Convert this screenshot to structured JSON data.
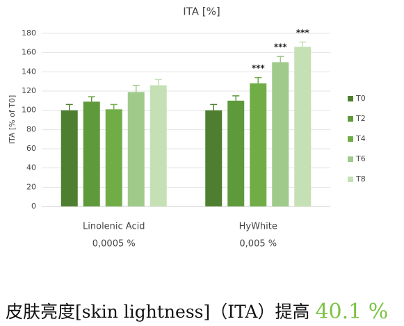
{
  "chart_data": {
    "type": "bar",
    "title": "ITA [%]",
    "y_label": "ITA [% of T0]",
    "categories": [
      [
        "Linolenic Acid",
        "0,0005 %"
      ],
      [
        "HyWhite",
        "0,005 %"
      ]
    ],
    "series": [
      {
        "name": "T0",
        "color": "#4e7f30",
        "values": [
          100,
          100
        ],
        "errors": [
          6,
          6
        ],
        "significance": [
          null,
          null
        ]
      },
      {
        "name": "T2",
        "color": "#5e9a3c",
        "values": [
          109,
          110
        ],
        "errors": [
          5,
          5
        ],
        "significance": [
          null,
          null
        ]
      },
      {
        "name": "T4",
        "color": "#70ad47",
        "values": [
          101,
          128
        ],
        "errors": [
          5,
          6
        ],
        "significance": [
          null,
          "***"
        ]
      },
      {
        "name": "T6",
        "color": "#9fca8a",
        "values": [
          119,
          150
        ],
        "errors": [
          7,
          6
        ],
        "significance": [
          null,
          "***"
        ]
      },
      {
        "name": "T8",
        "color": "#c5e0b5",
        "values": [
          126,
          166
        ],
        "errors": [
          6,
          5
        ],
        "significance": [
          null,
          "***"
        ]
      }
    ],
    "ylim": [
      0,
      180
    ],
    "yticks": [
      0,
      20,
      40,
      60,
      80,
      100,
      120,
      140,
      160,
      180
    ],
    "grid": true,
    "legend": "right",
    "caption": {
      "text": "皮肤亮度[skin lightness]（ITA）提高",
      "highlight": "40.1 %"
    }
  }
}
